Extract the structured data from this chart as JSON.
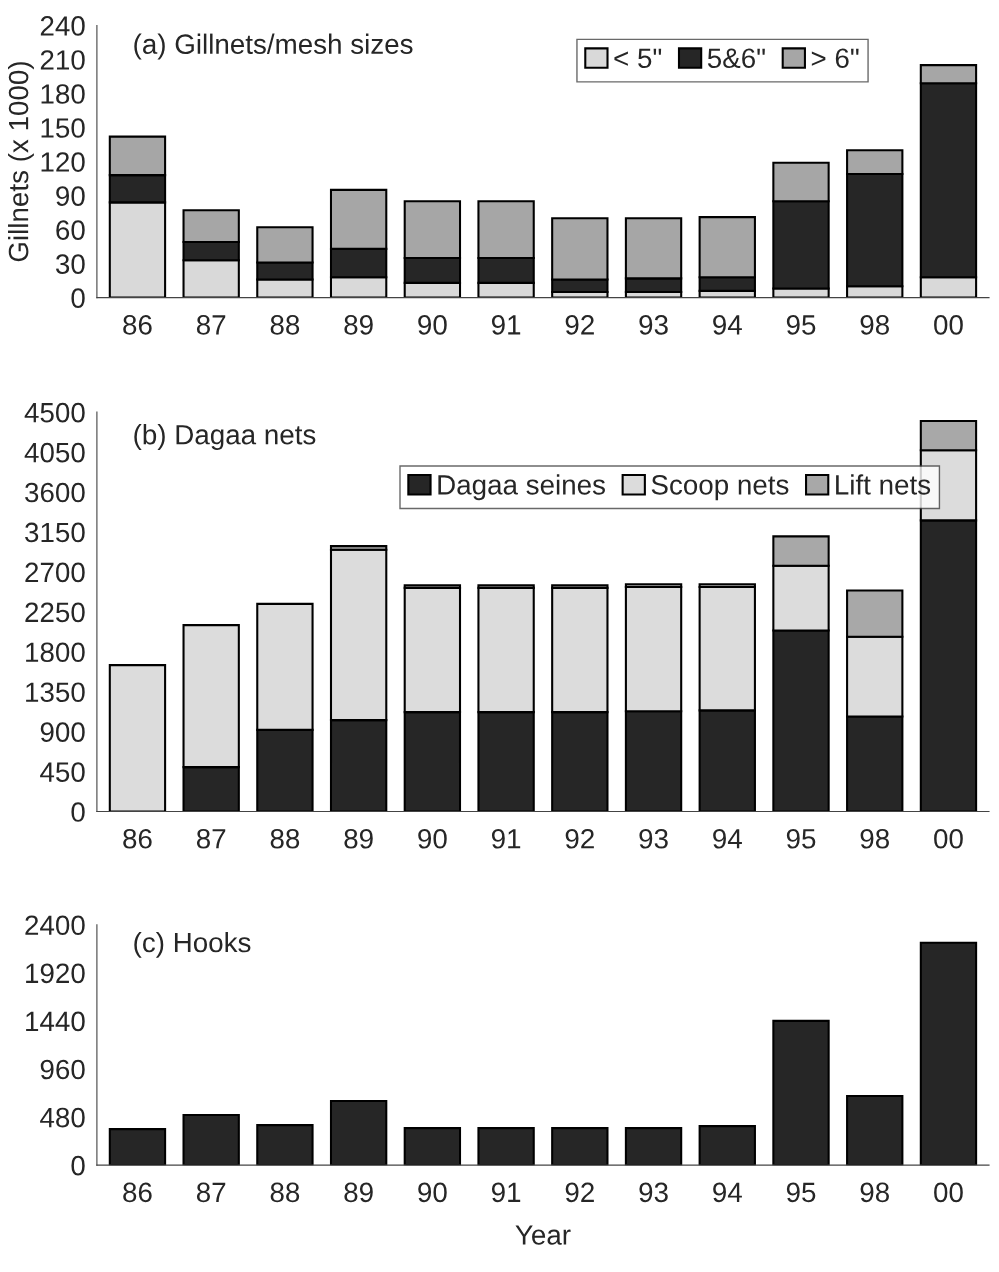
{
  "chart_data": [
    {
      "type": "bar",
      "title": "(a) Gillnets/mesh sizes",
      "ylabel": "Gillnets (x 1000)",
      "stacked": true,
      "legend": "top right",
      "categories": [
        "86",
        "87",
        "88",
        "89",
        "90",
        "91",
        "92",
        "93",
        "94",
        "95",
        "98",
        "00"
      ],
      "series": [
        {
          "name": "< 5\"",
          "color": "#d9d9d9",
          "values": [
            84,
            33,
            16,
            18,
            13,
            13,
            5,
            5,
            6,
            8,
            10,
            18
          ]
        },
        {
          "name": "5&6\"",
          "color": "#262626",
          "values": [
            24,
            16,
            15,
            25,
            22,
            22,
            11,
            12,
            12,
            77,
            99,
            171
          ]
        },
        {
          "name": "> 6\"",
          "color": "#a6a6a6",
          "values": [
            34,
            28,
            31,
            52,
            50,
            50,
            54,
            53,
            53,
            34,
            21,
            16
          ]
        }
      ],
      "ylim": [
        0,
        240
      ],
      "yticks": [
        0,
        30,
        60,
        90,
        120,
        150,
        180,
        210,
        240
      ],
      "grid": false
    },
    {
      "type": "bar",
      "title": "(b) Dagaa nets",
      "stacked": true,
      "legend": "top right",
      "categories": [
        "86",
        "87",
        "88",
        "89",
        "90",
        "91",
        "92",
        "93",
        "94",
        "95",
        "98",
        "00"
      ],
      "series": [
        {
          "name": "Dagaa seines",
          "color": "#262626",
          "values": [
            null,
            500,
            920,
            1030,
            1120,
            1120,
            1120,
            1130,
            1140,
            2040,
            1070,
            3280
          ]
        },
        {
          "name": "Scoop nets",
          "color": "#dcdcdc",
          "values": [
            1650,
            1600,
            1420,
            1920,
            1400,
            1400,
            1400,
            1400,
            1390,
            730,
            900,
            790
          ]
        },
        {
          "name": "Lift nets",
          "color": "#a8a8a8",
          "values": [
            null,
            null,
            null,
            40,
            30,
            30,
            30,
            30,
            30,
            330,
            520,
            330
          ]
        }
      ],
      "ylim": [
        0,
        4500
      ],
      "yticks": [
        0,
        450,
        900,
        1350,
        1800,
        2250,
        2700,
        3150,
        3600,
        4050,
        4500
      ],
      "grid": false
    },
    {
      "type": "bar",
      "title": "(c) Hooks",
      "xlabel": "Year",
      "categories": [
        "86",
        "87",
        "88",
        "89",
        "90",
        "91",
        "92",
        "93",
        "94",
        "95",
        "98",
        "00"
      ],
      "series": [
        {
          "color": "#262626",
          "values": [
            360,
            500,
            400,
            640,
            370,
            370,
            370,
            370,
            390,
            1440,
            690,
            2220
          ]
        }
      ],
      "ylim": [
        0,
        2400
      ],
      "yticks": [
        0,
        480,
        960,
        1440,
        1920,
        2400
      ],
      "grid": false
    }
  ]
}
